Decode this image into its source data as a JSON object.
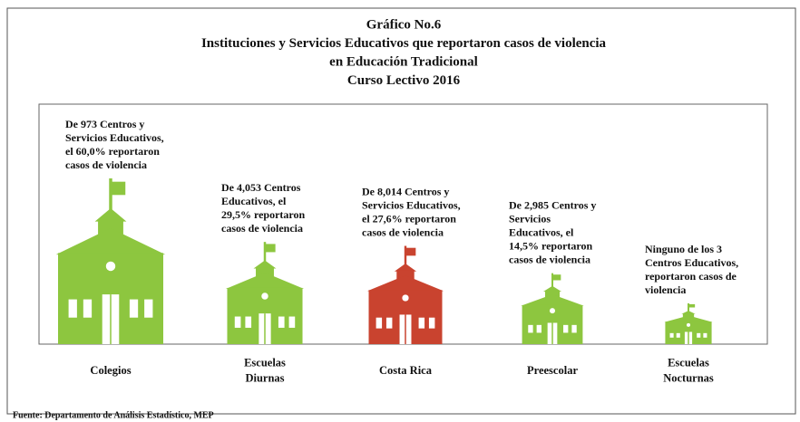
{
  "chart_data": {
    "type": "pictograph",
    "title": [
      "Gráfico No.6",
      "Instituciones y Servicios Educativos que reportaron casos de violencia",
      "en Educación Tradicional",
      "Curso Lectivo 2016"
    ],
    "categories": [
      [
        "Colegios"
      ],
      [
        "Escuelas",
        "Diurnas"
      ],
      [
        "Costa Rica"
      ],
      [
        "Preescolar"
      ],
      [
        "Escuelas",
        "Nocturnas"
      ]
    ],
    "values": [
      60.0,
      29.5,
      27.6,
      14.5,
      0
    ],
    "colors": [
      "#8dc63f",
      "#8dc63f",
      "#c9432f",
      "#8dc63f",
      "#8dc63f"
    ],
    "annotations": [
      [
        "De 973 Centros y",
        "Servicios Educativos,",
        "el 60,0% reportaron",
        "casos de violencia"
      ],
      [
        "De 4,053 Centros",
        "Educativos,  el",
        "29,5% reportaron",
        "casos de violencia"
      ],
      [
        "De 8,014 Centros y",
        "Servicios Educativos,",
        "el 27,6% reportaron",
        "casos de violencia"
      ],
      [
        "De 2,985 Centros y",
        "Servicios",
        "Educativos,  el",
        "14,5% reportaron",
        "casos de violencia"
      ],
      [
        "Ninguno de los 3",
        "Centros Educativos,",
        "reportaron casos de",
        "violencia"
      ]
    ],
    "source": "Fuente: Departamento de Análisis Estadístico, MEP"
  }
}
